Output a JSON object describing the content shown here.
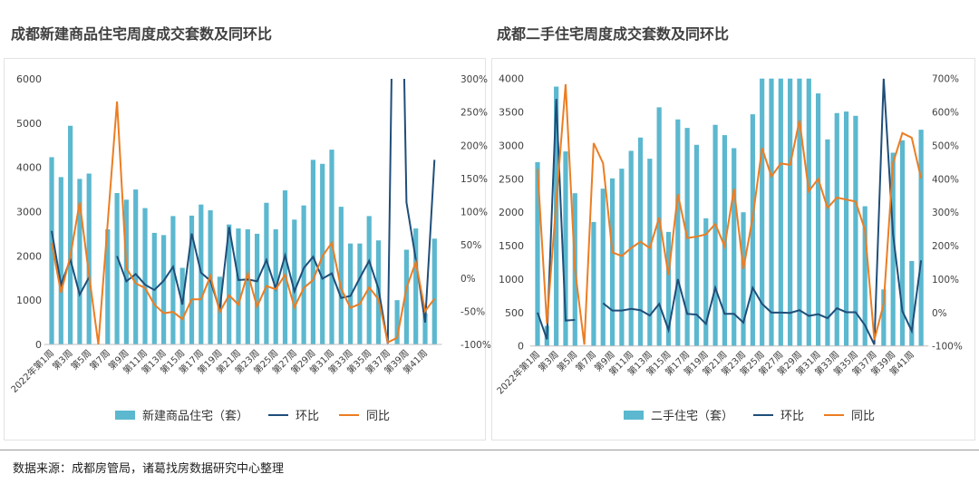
{
  "colors": {
    "bars": "#5bb8cf",
    "mom": "#1f4e79",
    "yoy": "#ec7d22",
    "axis": "#bfbfbf",
    "tick": "#404040"
  },
  "footer": "数据来源：成都房管局，诸葛找房数据研究中心整理",
  "chart_data": [
    {
      "type": "bar+line",
      "title": "成都新建商品住宅周度成交套数及同环比",
      "legend": [
        "新建商品住宅（套）",
        "环比",
        "同比"
      ],
      "legend_position": "bottom",
      "grid": false,
      "x_tick_labels": [
        "2022年第1周",
        "第3周",
        "第5周",
        "第7周",
        "第9周",
        "第11周",
        "第13周",
        "第15周",
        "第17周",
        "第19周",
        "第21周",
        "第23周",
        "第25周",
        "第27周",
        "第29周",
        "第31周",
        "第33周",
        "第35周",
        "第37周",
        "第39周",
        "第41周"
      ],
      "ylim": [
        0,
        6000
      ],
      "y_ticks": [
        "0",
        "1000",
        "2000",
        "3000",
        "4000",
        "5000",
        "6000"
      ],
      "y2lim": [
        -100,
        300
      ],
      "y2_ticks": [
        "-100%",
        "-50%",
        "0%",
        "50%",
        "100%",
        "150%",
        "200%",
        "250%",
        "300%"
      ],
      "units": "套",
      "bars": [
        4230,
        3780,
        4940,
        3740,
        3860,
        0,
        2600,
        3420,
        3270,
        3500,
        3080,
        2520,
        2470,
        2900,
        1730,
        2910,
        3160,
        3030,
        1530,
        2710,
        2620,
        2600,
        2500,
        3200,
        2600,
        3480,
        2820,
        3140,
        4170,
        4080,
        4400,
        3110,
        2280,
        2280,
        2900,
        2350,
        0,
        1000,
        2140,
        2620,
        700,
        2390
      ],
      "mom": [
        71,
        -10,
        28,
        -25,
        1,
        null,
        null,
        33,
        -5,
        6,
        -10,
        -18,
        -4,
        17,
        -40,
        67,
        8,
        -4,
        -48,
        77,
        -3,
        -2,
        -5,
        27,
        -16,
        34,
        -20,
        15,
        32,
        -1,
        7,
        -30,
        -27,
        0,
        26,
        -16,
        -99,
        900,
        114,
        28,
        -67,
        178
      ],
      "yoy": [
        53,
        -22,
        33,
        114,
        5,
        -100,
        83,
        266,
        15,
        -8,
        -15,
        -40,
        -53,
        -51,
        -62,
        -32,
        -32,
        3,
        -51,
        -26,
        -40,
        7,
        -43,
        -12,
        -17,
        5,
        -44,
        -15,
        -3,
        33,
        53,
        -16,
        -45,
        -39,
        -14,
        -32,
        -97,
        -90,
        -15,
        24,
        -50,
        -31
      ]
    },
    {
      "type": "bar+line",
      "title": "成都二手住宅周度成交套数及同环比",
      "legend": [
        "二手住宅（套）",
        "环比",
        "同比"
      ],
      "legend_position": "bottom",
      "grid": false,
      "x_tick_labels": [
        "2022年第1周",
        "第3周",
        "第5周",
        "第7周",
        "第9周",
        "第11周",
        "第13周",
        "第15周",
        "第17周",
        "第19周",
        "第21周",
        "第23周",
        "第25周",
        "第27周",
        "第29周",
        "第31周",
        "第33周",
        "第35周",
        "第37周",
        "第39周",
        "第41周"
      ],
      "ylim": [
        0,
        4000
      ],
      "y_ticks": [
        "0",
        "500",
        "1000",
        "1500",
        "2000",
        "2500",
        "3000",
        "3500",
        "4000"
      ],
      "y2lim": [
        -100,
        700
      ],
      "y2_ticks": [
        "-100%",
        "0%",
        "100%",
        "200%",
        "300%",
        "400%",
        "500%",
        "600%",
        "700%"
      ],
      "units": "套",
      "bars": [
        2750,
        300,
        3880,
        2910,
        2285,
        0,
        1855,
        2353,
        2507,
        2652,
        2919,
        3118,
        2801,
        3570,
        1706,
        3389,
        3262,
        3009,
        1910,
        3308,
        3154,
        2959,
        2000,
        3466,
        4000,
        4000,
        4000,
        4000,
        4000,
        4000,
        3778,
        3090,
        3484,
        3507,
        3443,
        2090,
        0,
        846,
        2891,
        3077,
        1271,
        3235
      ],
      "mom": [
        0,
        -80,
        639,
        -24,
        -22,
        null,
        null,
        28,
        6,
        6,
        11,
        7,
        -9,
        26,
        -52,
        100,
        -4,
        -6,
        -34,
        74,
        -4,
        -4,
        -30,
        74,
        26,
        0,
        0,
        -1,
        7,
        -10,
        -5,
        -17,
        13,
        1,
        1,
        -38,
        -96,
        700,
        234,
        4,
        -55,
        156
      ],
      "yoy": [
        430,
        -33,
        330,
        683,
        130,
        -96,
        507,
        447,
        180,
        169,
        193,
        212,
        193,
        284,
        112,
        354,
        223,
        227,
        234,
        265,
        198,
        370,
        130,
        284,
        492,
        407,
        446,
        442,
        575,
        363,
        400,
        313,
        344,
        338,
        332,
        247,
        -82,
        26,
        447,
        537,
        523,
        401
      ]
    }
  ]
}
